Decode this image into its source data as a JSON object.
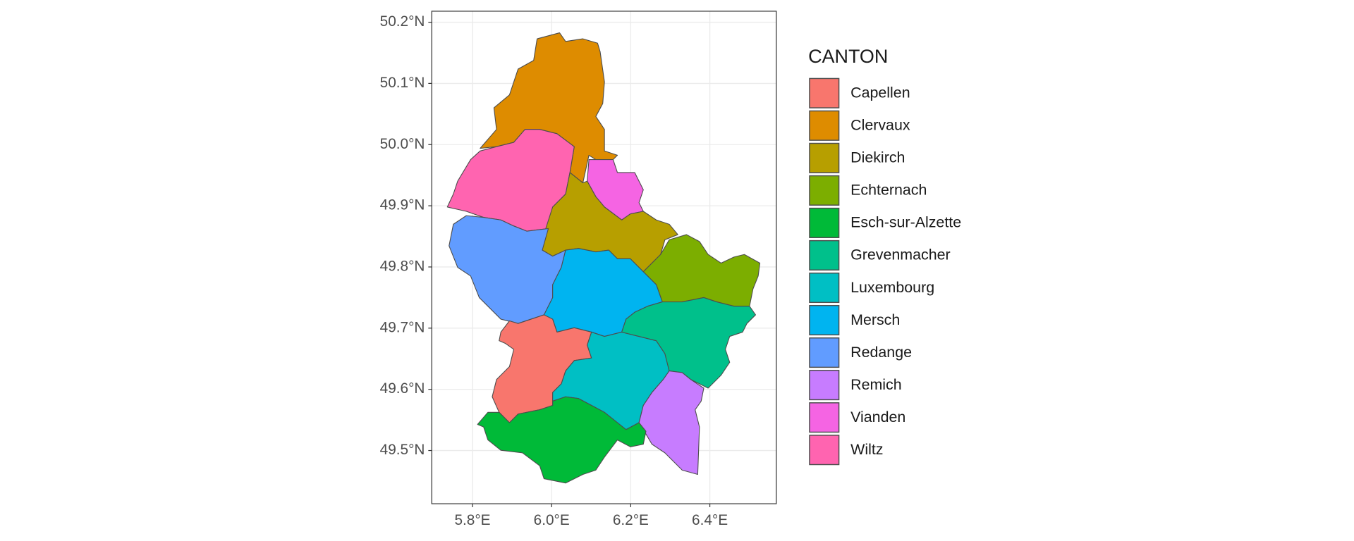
{
  "chart_data": {
    "type": "map",
    "legend_title": "CANTON",
    "xlim": [
      5.697,
      6.568
    ],
    "ylim": [
      49.413,
      50.218
    ],
    "xticks": [
      {
        "value": 5.8,
        "label": "5.8°E"
      },
      {
        "value": 6.0,
        "label": "6.0°E"
      },
      {
        "value": 6.2,
        "label": "6.2°E"
      },
      {
        "value": 6.4,
        "label": "6.4°E"
      }
    ],
    "yticks": [
      {
        "value": 49.5,
        "label": "49.5°N"
      },
      {
        "value": 49.6,
        "label": "49.6°N"
      },
      {
        "value": 49.7,
        "label": "49.7°N"
      },
      {
        "value": 49.8,
        "label": "49.8°N"
      },
      {
        "value": 49.9,
        "label": "49.9°N"
      },
      {
        "value": 50.0,
        "label": "50.0°N"
      },
      {
        "value": 50.1,
        "label": "50.1°N"
      },
      {
        "value": 50.2,
        "label": "50.2°N"
      }
    ],
    "grid": true,
    "legend_position": "right",
    "series": [
      {
        "name": "Capellen",
        "color": "#F8766D"
      },
      {
        "name": "Clervaux",
        "color": "#DE8C00"
      },
      {
        "name": "Diekirch",
        "color": "#B79F00"
      },
      {
        "name": "Echternach",
        "color": "#7CAE00"
      },
      {
        "name": "Esch-sur-Alzette",
        "color": "#00BA38"
      },
      {
        "name": "Grevenmacher",
        "color": "#00C08B"
      },
      {
        "name": "Luxembourg",
        "color": "#00BFC4"
      },
      {
        "name": "Mersch",
        "color": "#00B4F0"
      },
      {
        "name": "Redange",
        "color": "#619CFF"
      },
      {
        "name": "Remich",
        "color": "#C77CFF"
      },
      {
        "name": "Vianden",
        "color": "#F564E3"
      },
      {
        "name": "Wiltz",
        "color": "#FF64B0"
      }
    ]
  }
}
